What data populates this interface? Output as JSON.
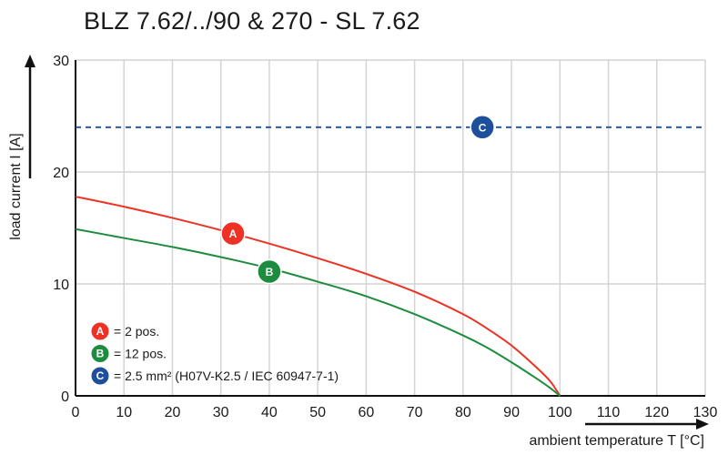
{
  "chart_data": {
    "type": "line",
    "title": "BLZ 7.62/../90 & 270 - SL 7.62",
    "xlabel": "ambient temperature T [°C]",
    "ylabel": "load current I [A]",
    "xlim": [
      0,
      130
    ],
    "ylim": [
      0,
      30
    ],
    "xticks": [
      "0",
      "10",
      "20",
      "30",
      "40",
      "50",
      "60",
      "70",
      "80",
      "90",
      "100",
      "110",
      "120",
      "130"
    ],
    "yticks": [
      "0",
      "10",
      "20",
      "30"
    ],
    "grid": true,
    "legend_position": "bottom-left",
    "series": [
      {
        "name": "A",
        "legend": "= 2 pos.",
        "color": "#ee3124",
        "marker_at": [
          32.5,
          14.5
        ],
        "x": [
          0,
          10,
          20,
          30,
          40,
          50,
          60,
          70,
          80,
          85,
          90,
          95,
          98,
          100
        ],
        "y": [
          17.8,
          16.9,
          15.9,
          14.8,
          13.6,
          12.3,
          10.9,
          9.3,
          7.3,
          6.0,
          4.5,
          2.6,
          1.3,
          0
        ]
      },
      {
        "name": "B",
        "legend": "= 12 pos.",
        "color": "#1e8c3e",
        "marker_at": [
          40,
          11.1
        ],
        "x": [
          0,
          10,
          20,
          30,
          40,
          50,
          60,
          70,
          80,
          85,
          90,
          95,
          98,
          100
        ],
        "y": [
          14.9,
          14.1,
          13.3,
          12.4,
          11.4,
          10.2,
          8.9,
          7.3,
          5.4,
          4.3,
          3.0,
          1.6,
          0.7,
          0
        ]
      },
      {
        "name": "C",
        "legend": "= 2.5 mm² (H07V-K2.5 / IEC 60947-7-1)",
        "color": "#1d4f9c",
        "style": "dashed",
        "marker_at": [
          84,
          24
        ],
        "x": [
          0,
          130
        ],
        "y": [
          24,
          24
        ]
      }
    ]
  }
}
